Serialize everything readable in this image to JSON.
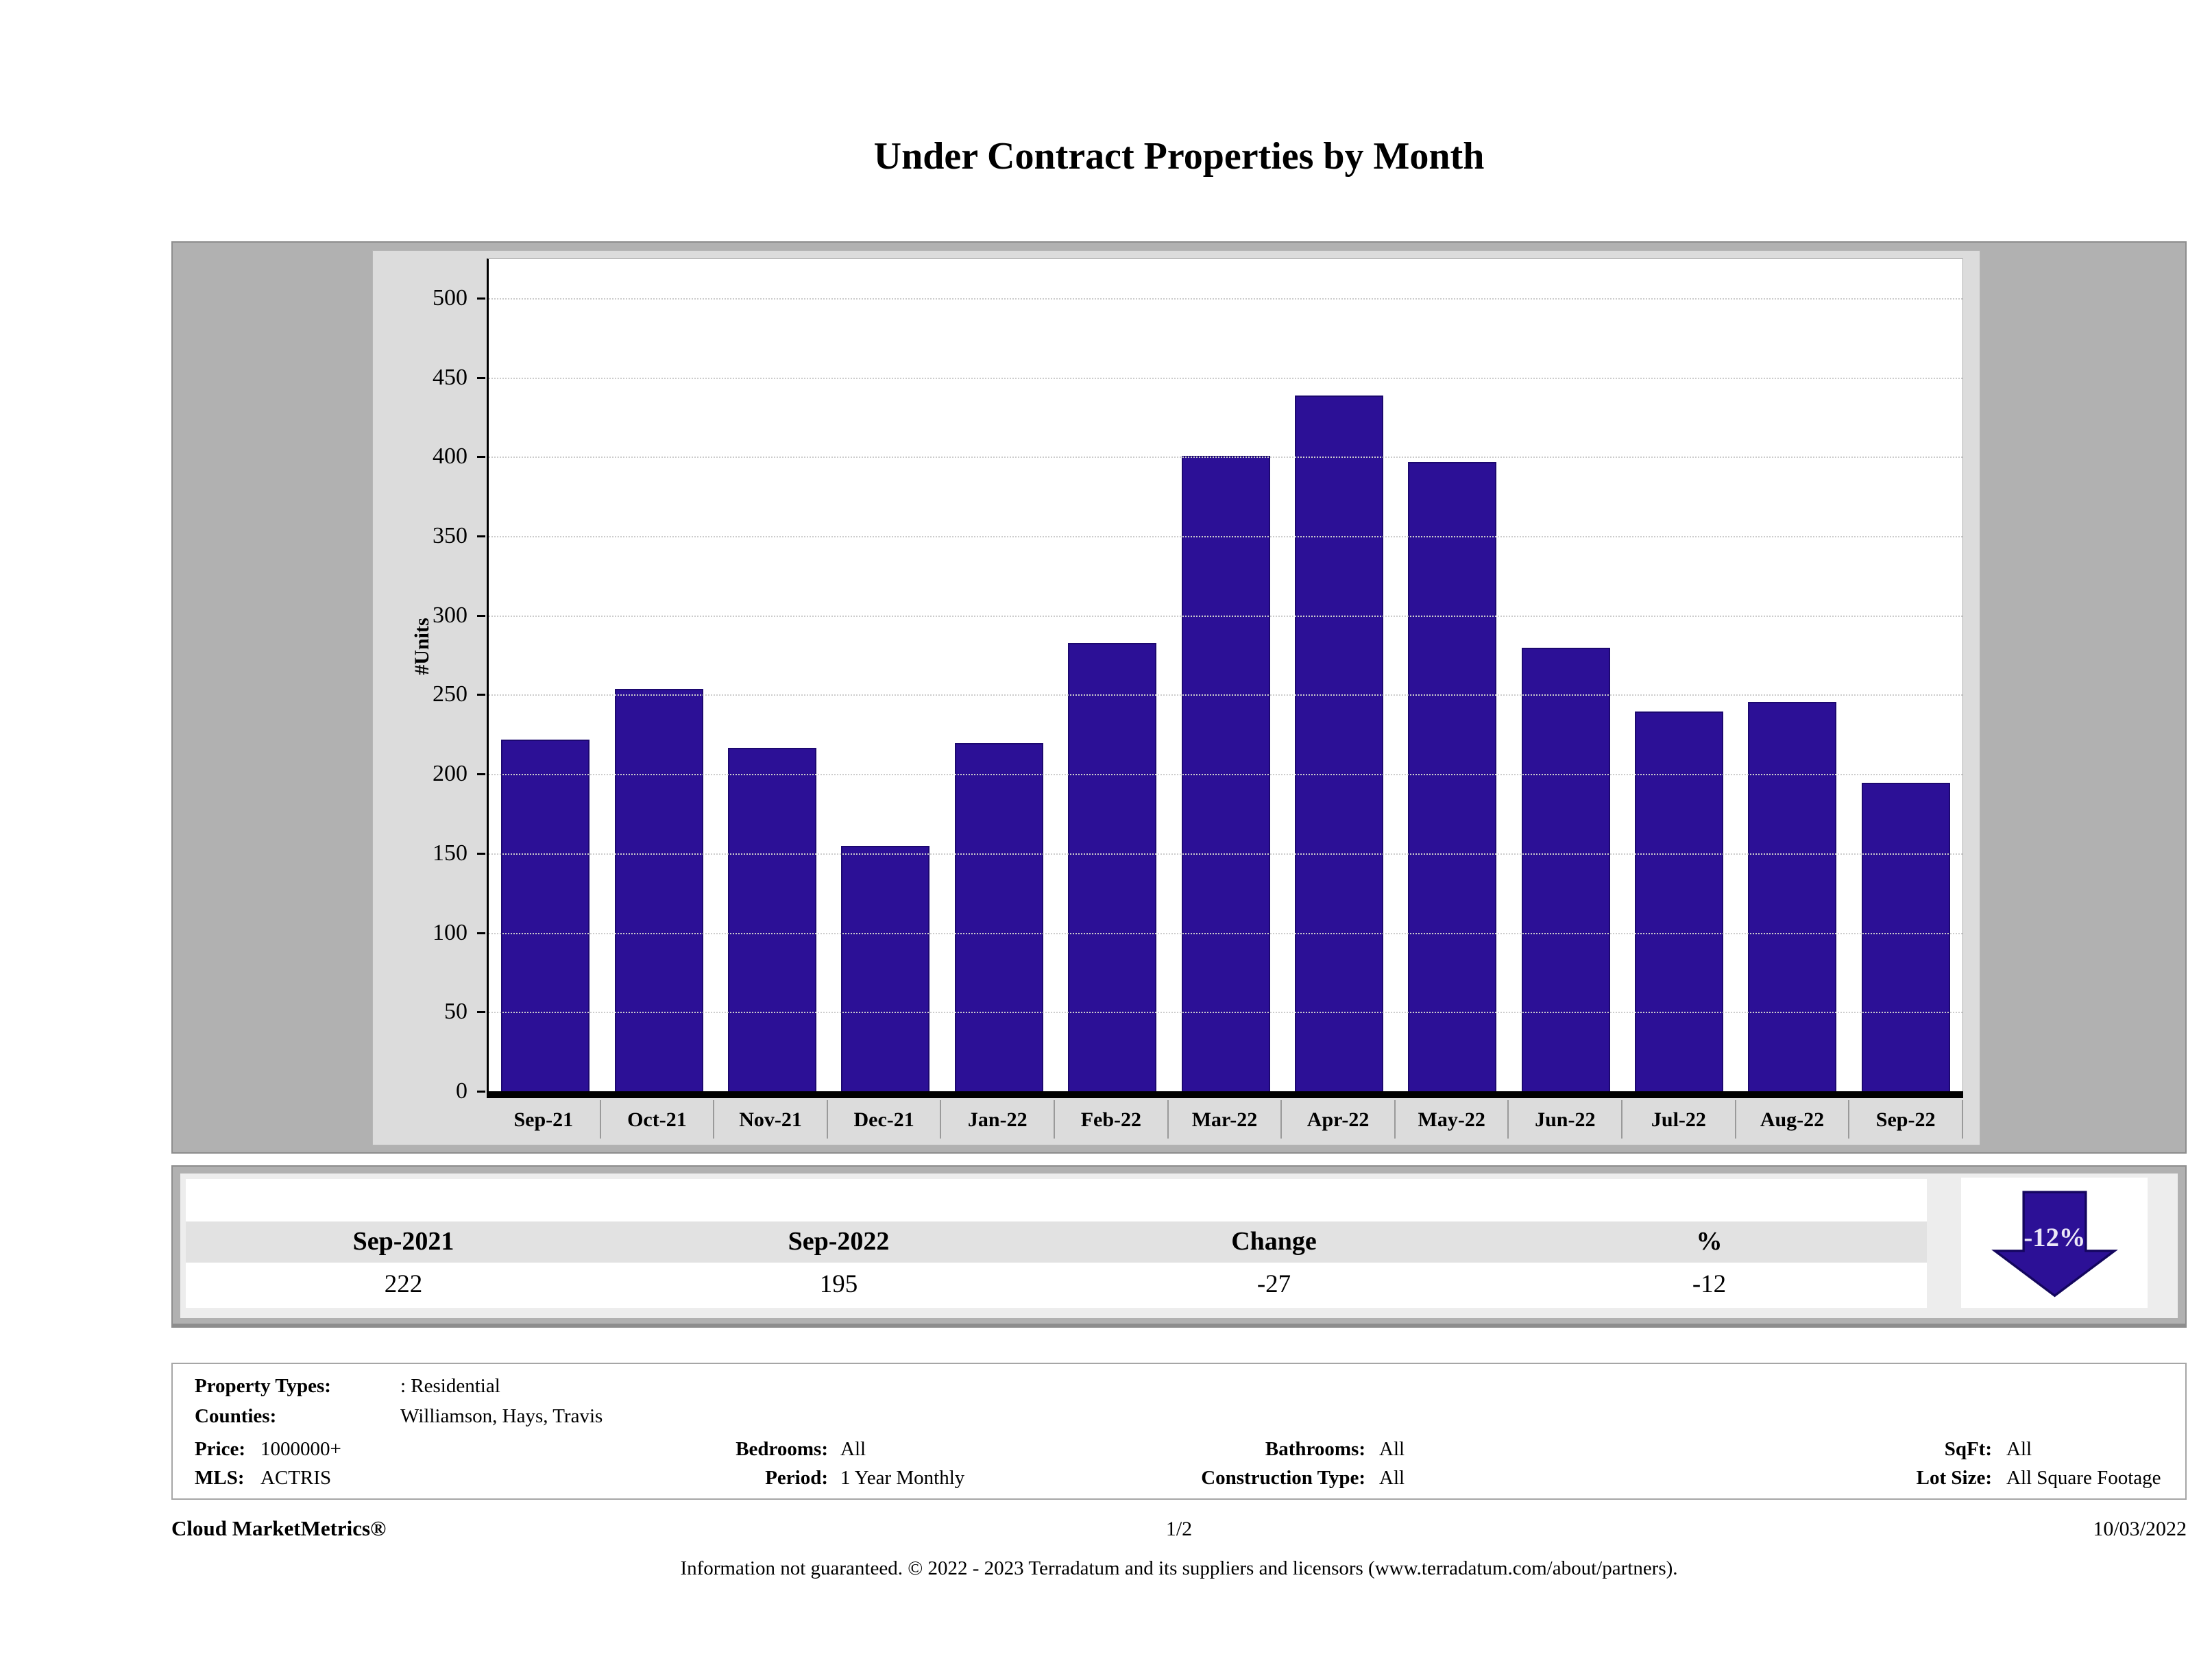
{
  "title": "Under Contract Properties by Month",
  "chart_data": {
    "type": "bar",
    "title": "Under Contract Properties by Month",
    "categories": [
      "Sep-21",
      "Oct-21",
      "Nov-21",
      "Dec-21",
      "Jan-22",
      "Feb-22",
      "Mar-22",
      "Apr-22",
      "May-22",
      "Jun-22",
      "Jul-22",
      "Aug-22",
      "Sep-22"
    ],
    "values": [
      222,
      254,
      217,
      155,
      220,
      283,
      401,
      439,
      397,
      280,
      240,
      246,
      195
    ],
    "xlabel": "",
    "ylabel": "#Units",
    "ylim": [
      0,
      525
    ],
    "yticks": [
      0,
      50,
      100,
      150,
      200,
      250,
      300,
      350,
      400,
      450,
      500
    ],
    "grid": "horizontal-dotted",
    "legend": "none",
    "bar_color": "#2c1096"
  },
  "summary": {
    "headers": [
      "Sep-2021",
      "Sep-2022",
      "Change",
      "%"
    ],
    "values": [
      "222",
      "195",
      "-27",
      "-12"
    ],
    "arrow": {
      "label": "-12%",
      "direction": "down",
      "color": "#2c1096"
    }
  },
  "details": {
    "property_types_label": "Property Types:",
    "property_types_value": ": Residential",
    "counties_label": "Counties:",
    "counties_value": "Williamson, Hays, Travis",
    "price_label": "Price:",
    "price_value": "1000000+",
    "bedrooms_label": "Bedrooms:",
    "bedrooms_value": "All",
    "bathrooms_label": "Bathrooms:",
    "bathrooms_value": "All",
    "sqft_label": "SqFt:",
    "sqft_value": "All",
    "mls_label": "MLS:",
    "mls_value": "ACTRIS",
    "period_label": "Period:",
    "period_value": "1 Year Monthly",
    "construction_label": "Construction Type:",
    "construction_value": "All",
    "lot_size_label": "Lot Size:",
    "lot_size_value": "All Square Footage"
  },
  "footer": {
    "brand": "Cloud MarketMetrics®",
    "page": "1/2",
    "date": "10/03/2022",
    "disclaimer": "Information not guaranteed. © 2022 - 2023 Terradatum and its suppliers and licensors (www.terradatum.com/about/partners)."
  }
}
